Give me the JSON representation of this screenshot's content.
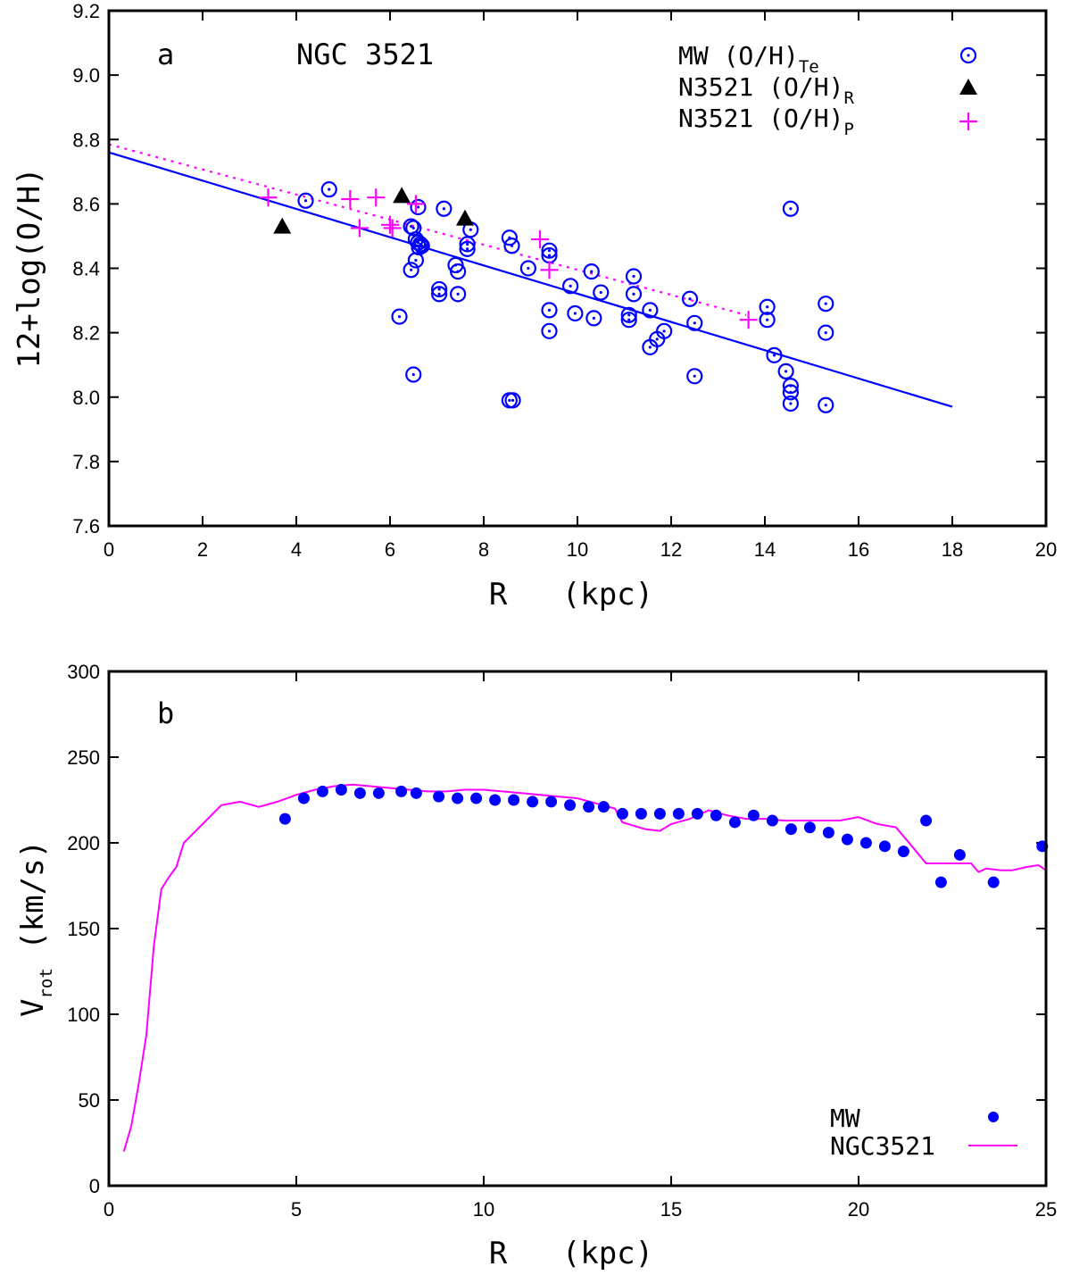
{
  "colors": {
    "mw": "#0000ff",
    "n3521": "#ff00ff",
    "tri": "#000000"
  },
  "chart_data": [
    {
      "type": "scatter",
      "panel_label": "a",
      "title": "NGC 3521",
      "xlabel": "R   (kpc)",
      "ylabel": "12+log(O/H)",
      "xlim": [
        0,
        20
      ],
      "ylim": [
        7.6,
        9.2
      ],
      "xticks": [
        0,
        2,
        4,
        6,
        8,
        10,
        12,
        14,
        16,
        18,
        20
      ],
      "yticks": [
        "7.6",
        "7.8",
        "8.0",
        "8.2",
        "8.4",
        "8.6",
        "8.8",
        "9.0",
        "9.2"
      ],
      "legend": [
        {
          "main": "MW (O/H)",
          "sub": "Te",
          "marker": "open-circle-dot"
        },
        {
          "main": "N3521 (O/H)",
          "sub": "R",
          "marker": "filled-triangle"
        },
        {
          "main": "N3521 (O/H)",
          "sub": "P",
          "marker": "plus"
        }
      ],
      "series": [
        {
          "name": "MW (O/H)Te",
          "marker": "open-circle-dot",
          "points": [
            [
              4.2,
              8.61
            ],
            [
              4.7,
              8.645
            ],
            [
              6.45,
              8.53
            ],
            [
              6.5,
              8.525
            ],
            [
              6.6,
              8.59
            ],
            [
              6.55,
              8.49
            ],
            [
              6.6,
              8.48
            ],
            [
              6.62,
              8.465
            ],
            [
              6.68,
              8.47
            ],
            [
              6.65,
              8.475
            ],
            [
              6.55,
              8.425
            ],
            [
              6.45,
              8.395
            ],
            [
              6.2,
              8.25
            ],
            [
              6.5,
              8.07
            ],
            [
              7.05,
              8.335
            ],
            [
              7.05,
              8.32
            ],
            [
              7.15,
              8.585
            ],
            [
              7.4,
              8.41
            ],
            [
              7.45,
              8.39
            ],
            [
              7.45,
              8.32
            ],
            [
              7.65,
              8.475
            ],
            [
              7.65,
              8.46
            ],
            [
              7.72,
              8.52
            ],
            [
              8.55,
              8.495
            ],
            [
              8.6,
              8.47
            ],
            [
              8.55,
              7.99
            ],
            [
              8.62,
              7.99
            ],
            [
              8.95,
              8.4
            ],
            [
              9.4,
              8.455
            ],
            [
              9.4,
              8.44
            ],
            [
              9.4,
              8.27
            ],
            [
              9.4,
              8.205
            ],
            [
              9.85,
              8.345
            ],
            [
              9.95,
              8.26
            ],
            [
              10.3,
              8.39
            ],
            [
              10.35,
              8.245
            ],
            [
              10.5,
              8.325
            ],
            [
              11.1,
              8.255
            ],
            [
              11.1,
              8.24
            ],
            [
              11.2,
              8.375
            ],
            [
              11.2,
              8.32
            ],
            [
              11.55,
              8.27
            ],
            [
              11.55,
              8.155
            ],
            [
              11.7,
              8.18
            ],
            [
              11.85,
              8.205
            ],
            [
              12.4,
              8.305
            ],
            [
              12.5,
              8.23
            ],
            [
              12.5,
              8.065
            ],
            [
              14.05,
              8.28
            ],
            [
              14.05,
              8.24
            ],
            [
              14.2,
              8.13
            ],
            [
              14.45,
              8.08
            ],
            [
              14.55,
              8.035
            ],
            [
              14.55,
              8.015
            ],
            [
              14.55,
              7.98
            ],
            [
              14.55,
              8.585
            ],
            [
              15.3,
              8.29
            ],
            [
              15.3,
              8.2
            ],
            [
              15.3,
              7.975
            ]
          ]
        },
        {
          "name": "N3521 (O/H)R",
          "marker": "filled-triangle",
          "points": [
            [
              3.7,
              8.53
            ],
            [
              6.25,
              8.625
            ],
            [
              7.6,
              8.555
            ]
          ]
        },
        {
          "name": "N3521 (O/H)P",
          "marker": "plus",
          "points": [
            [
              3.4,
              8.62
            ],
            [
              5.15,
              8.615
            ],
            [
              5.7,
              8.62
            ],
            [
              5.35,
              8.525
            ],
            [
              6.0,
              8.535
            ],
            [
              6.05,
              8.525
            ],
            [
              6.55,
              8.6
            ],
            [
              9.2,
              8.49
            ],
            [
              9.4,
              8.395
            ],
            [
              13.65,
              8.24
            ]
          ]
        }
      ],
      "fits": [
        {
          "name": "MW fit",
          "style": "solid",
          "color": "#0000ff",
          "points": [
            [
              0,
              8.76
            ],
            [
              18,
              7.97
            ]
          ]
        },
        {
          "name": "N3521 fit",
          "style": "dotted",
          "color": "#ff00ff",
          "points": [
            [
              0,
              8.785
            ],
            [
              13.6,
              8.255
            ]
          ]
        }
      ]
    },
    {
      "type": "line",
      "panel_label": "b",
      "xlabel": "R   (kpc)",
      "ylabel_main": "V",
      "ylabel_sub": "rot",
      "ylabel_rest": " (km/s)",
      "xlim": [
        0,
        25
      ],
      "ylim": [
        0,
        300
      ],
      "xticks": [
        0,
        5,
        10,
        15,
        20,
        25
      ],
      "yticks": [
        0,
        50,
        100,
        150,
        200,
        250,
        300
      ],
      "legend": [
        {
          "label": "MW",
          "marker": "filled-circle"
        },
        {
          "label": "NGC3521",
          "marker": "line"
        }
      ],
      "series": [
        {
          "name": "MW",
          "marker": "filled-circle",
          "points": [
            [
              4.7,
              214
            ],
            [
              5.2,
              226
            ],
            [
              5.7,
              230
            ],
            [
              6.2,
              231
            ],
            [
              6.7,
              229
            ],
            [
              7.2,
              229
            ],
            [
              7.8,
              230
            ],
            [
              8.2,
              229
            ],
            [
              8.8,
              227
            ],
            [
              9.3,
              226
            ],
            [
              9.8,
              226
            ],
            [
              10.3,
              225
            ],
            [
              10.8,
              225
            ],
            [
              11.3,
              224
            ],
            [
              11.8,
              224
            ],
            [
              12.3,
              222
            ],
            [
              12.8,
              221
            ],
            [
              13.2,
              221
            ],
            [
              13.7,
              217
            ],
            [
              14.2,
              217
            ],
            [
              14.7,
              217
            ],
            [
              15.2,
              217
            ],
            [
              15.7,
              217
            ],
            [
              16.2,
              216
            ],
            [
              16.7,
              212
            ],
            [
              17.2,
              216
            ],
            [
              17.7,
              213
            ],
            [
              18.2,
              208
            ],
            [
              18.7,
              209
            ],
            [
              19.2,
              206
            ],
            [
              19.7,
              202
            ],
            [
              20.2,
              200
            ],
            [
              20.7,
              198
            ],
            [
              21.2,
              195
            ],
            [
              21.8,
              213
            ],
            [
              22.2,
              177
            ],
            [
              22.7,
              193
            ],
            [
              23.6,
              177
            ],
            [
              24.9,
              198
            ]
          ]
        },
        {
          "name": "NGC3521",
          "marker": "line",
          "points": [
            [
              0.4,
              20
            ],
            [
              0.6,
              35
            ],
            [
              0.8,
              60
            ],
            [
              1.0,
              88
            ],
            [
              1.2,
              140
            ],
            [
              1.4,
              173
            ],
            [
              1.6,
              180
            ],
            [
              1.8,
              186
            ],
            [
              2.0,
              200
            ],
            [
              3.0,
              222
            ],
            [
              3.5,
              224
            ],
            [
              4.0,
              221
            ],
            [
              4.5,
              224
            ],
            [
              5.0,
              228
            ],
            [
              5.5,
              231
            ],
            [
              6.0,
              233
            ],
            [
              6.5,
              234
            ],
            [
              7.0,
              233
            ],
            [
              7.5,
              232
            ],
            [
              8.0,
              231
            ],
            [
              8.5,
              230
            ],
            [
              9.0,
              230
            ],
            [
              9.5,
              231
            ],
            [
              10.0,
              231
            ],
            [
              10.5,
              230
            ],
            [
              11.0,
              229
            ],
            [
              11.5,
              228
            ],
            [
              12.0,
              227
            ],
            [
              12.5,
              226
            ],
            [
              13.0,
              223
            ],
            [
              13.5,
              220
            ],
            [
              13.7,
              212
            ],
            [
              14.0,
              210
            ],
            [
              14.3,
              208
            ],
            [
              14.7,
              207
            ],
            [
              15.0,
              211
            ],
            [
              15.5,
              214
            ],
            [
              16.0,
              219
            ],
            [
              16.5,
              216
            ],
            [
              17.0,
              214
            ],
            [
              17.5,
              214
            ],
            [
              18.0,
              213
            ],
            [
              18.5,
              213
            ],
            [
              19.0,
              213
            ],
            [
              19.5,
              213
            ],
            [
              20.0,
              215
            ],
            [
              20.5,
              211
            ],
            [
              21.0,
              209
            ],
            [
              21.5,
              196
            ],
            [
              21.8,
              188
            ],
            [
              22.3,
              188
            ],
            [
              22.8,
              188
            ],
            [
              23.0,
              188
            ],
            [
              23.2,
              183
            ],
            [
              23.4,
              185
            ],
            [
              23.8,
              184
            ],
            [
              24.1,
              184
            ],
            [
              24.5,
              186
            ],
            [
              24.8,
              187
            ],
            [
              25.0,
              184
            ]
          ]
        }
      ]
    }
  ]
}
